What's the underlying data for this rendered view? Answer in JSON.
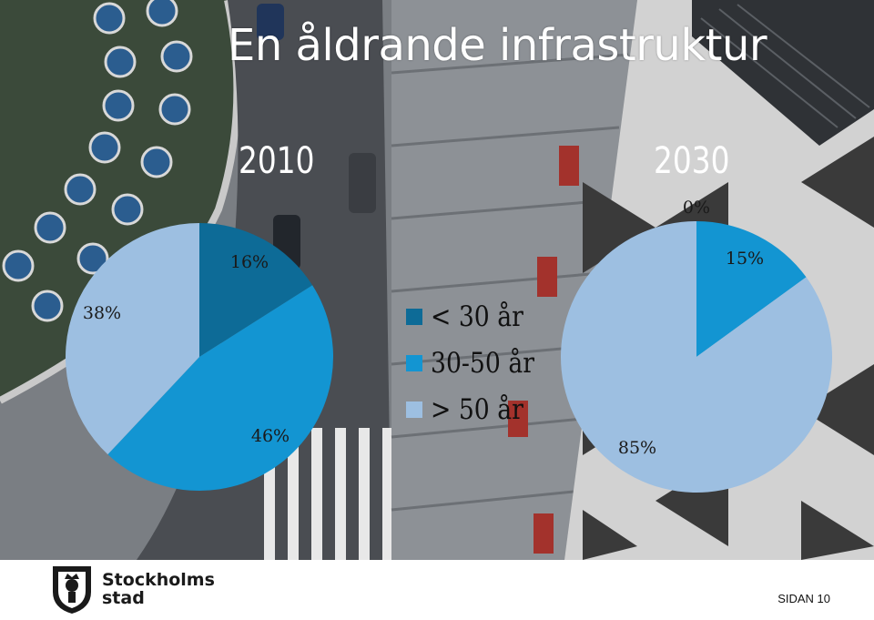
{
  "title": "En åldrande infrastruktur",
  "footer": {
    "logo_line1": "Stockholms",
    "logo_line2": "stad",
    "page_label": "SIDAN 10"
  },
  "colors": {
    "under_30": "#0d6b97",
    "mid_30_50": "#1395d2",
    "over_50": "#9dbfe1"
  },
  "chart_data": [
    {
      "type": "pie",
      "title": "2010",
      "slices": [
        {
          "label": "< 30 år",
          "value": 16,
          "display": "16%",
          "color": "#0d6b97"
        },
        {
          "label": "30-50 år",
          "value": 46,
          "display": "46%",
          "color": "#1395d2"
        },
        {
          "label": "> 50 år",
          "value": 38,
          "display": "38%",
          "color": "#9dbfe1"
        }
      ],
      "legend": {
        "position": "between-charts",
        "entries": [
          {
            "label": "< 30 år",
            "color": "#0d6b97"
          },
          {
            "label": "30-50 år",
            "color": "#1395d2"
          },
          {
            "label": "> 50 år",
            "color": "#9dbfe1"
          }
        ]
      }
    },
    {
      "type": "pie",
      "title": "2030",
      "slices": [
        {
          "label": "< 30 år",
          "value": 0,
          "display": "0%",
          "color": "#0d6b97"
        },
        {
          "label": "30-50 år",
          "value": 15,
          "display": "15%",
          "color": "#1395d2"
        },
        {
          "label": "> 50 år",
          "value": 85,
          "display": "85%",
          "color": "#9dbfe1"
        }
      ]
    }
  ]
}
